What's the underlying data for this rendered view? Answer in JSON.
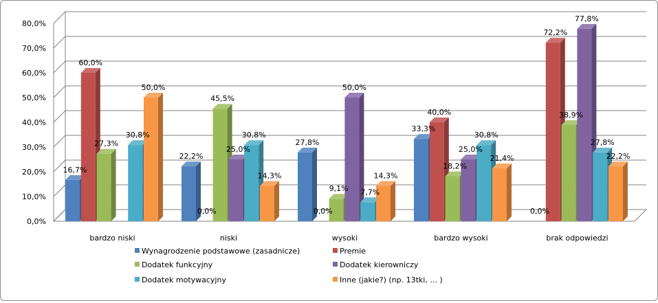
{
  "chart_data": {
    "type": "bar",
    "categories": [
      "bardzo niski",
      "niski",
      "wysoki",
      "bardzo wysoki",
      "brak odpowiedzi"
    ],
    "series": [
      {
        "name": "Wynagrodzenie podstawowe (zasadnicze)",
        "color": "#4f81bd",
        "values": [
          16.7,
          22.2,
          27.8,
          33.3,
          0.0
        ],
        "labels": [
          "16,7%",
          "22,2%",
          "27,8%",
          "33,3%",
          "0,0%"
        ]
      },
      {
        "name": "Premie",
        "color": "#c0504d",
        "values": [
          60.0,
          0.0,
          0.0,
          40.0,
          72.2
        ],
        "labels": [
          "60,0%",
          "0,0%",
          "0,0%",
          "40,0%",
          "72,2%"
        ]
      },
      {
        "name": "Dodatek funkcyjny",
        "color": "#9bbb59",
        "values": [
          27.3,
          45.5,
          9.1,
          18.2,
          38.9
        ],
        "labels": [
          "27,3%",
          "45,5%",
          "9,1%",
          "18,2%",
          "38,9%"
        ]
      },
      {
        "name": "Dodatek kierowniczy",
        "color": "#8064a2",
        "values": [
          0.0,
          25.0,
          50.0,
          25.0,
          77.8
        ],
        "labels": [
          "",
          "25,0%",
          "50,0%",
          "25,0%",
          "77,8%"
        ]
      },
      {
        "name": "Dodatek motywacyjny",
        "color": "#4bacc6",
        "values": [
          30.8,
          30.8,
          7.7,
          30.8,
          27.8
        ],
        "labels": [
          "30,8%",
          "30,8%",
          "7,7%",
          "30,8%",
          "27,8%"
        ]
      },
      {
        "name": "Inne (jakie?) (np. 13tki, ... )",
        "color": "#f79646",
        "values": [
          50.0,
          14.3,
          14.3,
          21.4,
          22.2
        ],
        "labels": [
          "50,0%",
          "14,3%",
          "14,3%",
          "21,4%",
          "22,2%"
        ]
      }
    ],
    "y_ticks": [
      "0,0%",
      "10,0%",
      "20,0%",
      "30,0%",
      "40,0%",
      "50,0%",
      "60,0%",
      "70,0%",
      "80,0%"
    ],
    "ylim": [
      0,
      80
    ],
    "grid": true,
    "legend_position": "bottom"
  }
}
